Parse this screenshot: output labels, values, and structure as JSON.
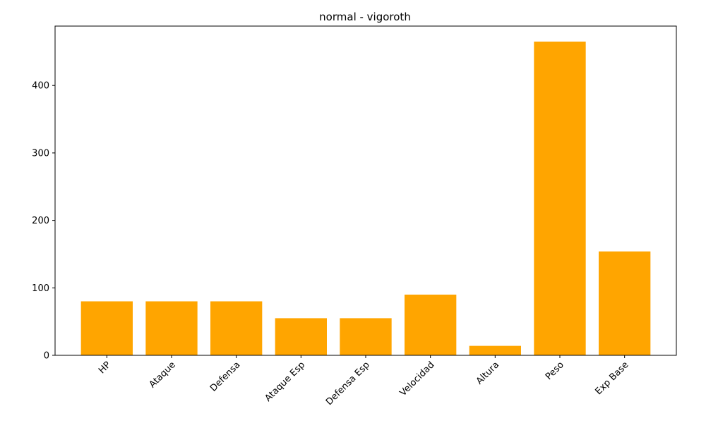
{
  "chart_data": {
    "type": "bar",
    "title": "normal - vigoroth",
    "xlabel": "",
    "ylabel": "",
    "categories": [
      "HP",
      "Ataque",
      "Defensa",
      "Ataque Esp",
      "Defensa Esp",
      "Velocidad",
      "Altura",
      "Peso",
      "Exp Base"
    ],
    "values": [
      80,
      80,
      80,
      55,
      55,
      90,
      14,
      465,
      154
    ],
    "ylim": [
      0,
      488
    ],
    "yticks": [
      0,
      100,
      200,
      300,
      400
    ],
    "bar_color": "#ffa500",
    "grid": false,
    "x_tick_rotation_deg": 45
  }
}
